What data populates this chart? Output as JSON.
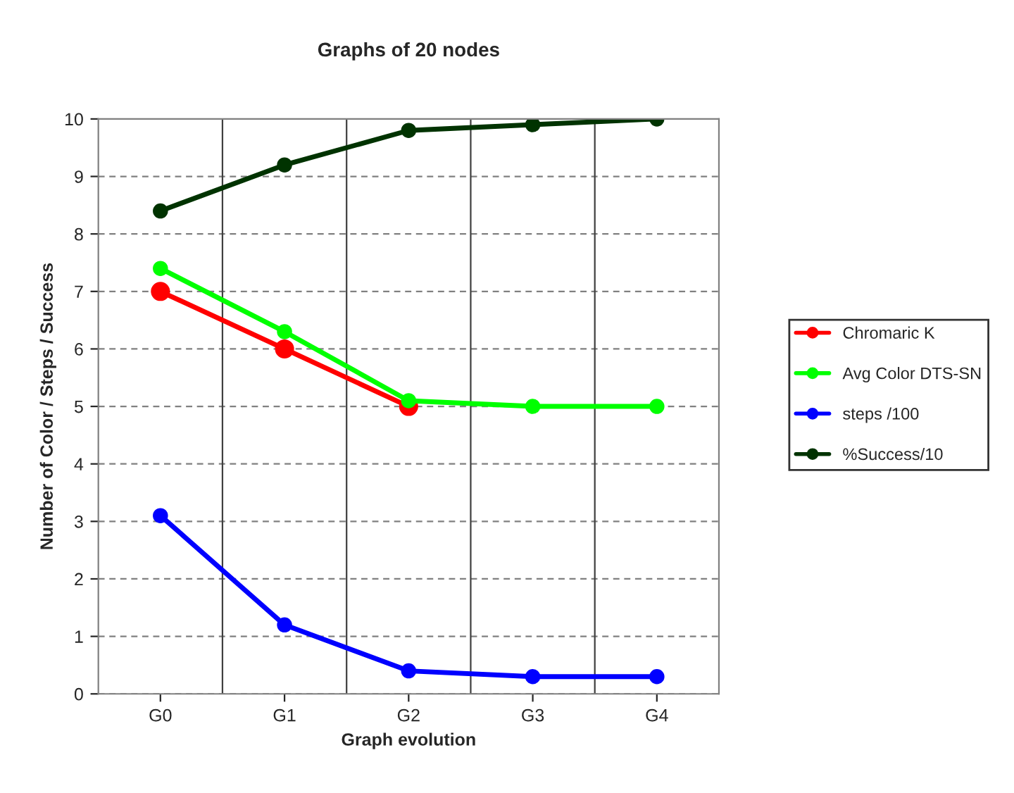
{
  "chart_data": {
    "type": "line",
    "title": "Graphs of 20 nodes",
    "xlabel": "Graph evolution",
    "ylabel": "Number of Color / Steps / Success",
    "categories": [
      "G0",
      "G1",
      "G2",
      "G3",
      "G4"
    ],
    "series": [
      {
        "name": "Chromaric K",
        "color": "#ff0000",
        "values": [
          7,
          6,
          5,
          null,
          null
        ]
      },
      {
        "name": "Avg Color DTS-SN",
        "color": "#00ff00",
        "values": [
          7.4,
          6.3,
          5.1,
          5.0,
          5.0
        ]
      },
      {
        "name": "steps /100",
        "color": "#0000ff",
        "values": [
          3.1,
          1.2,
          0.4,
          0.3,
          0.3
        ]
      },
      {
        "name": "%Success/10",
        "color": "#003300",
        "values": [
          8.4,
          9.2,
          9.8,
          9.9,
          10.0
        ]
      }
    ],
    "ylim": [
      0,
      10
    ],
    "yticks": [
      0,
      1,
      2,
      3,
      4,
      5,
      6,
      7,
      8,
      9,
      10
    ],
    "grid": true,
    "legend": "right",
    "marker": "circle",
    "line_style": "solid"
  }
}
